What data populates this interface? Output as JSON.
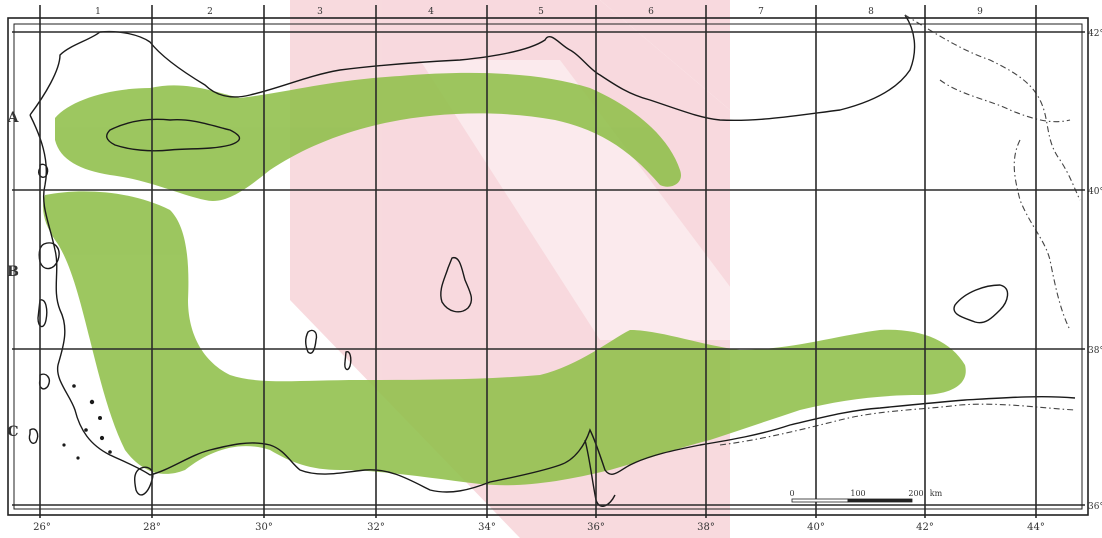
{
  "map": {
    "columns": [
      "1",
      "2",
      "3",
      "4",
      "5",
      "6",
      "7",
      "8",
      "9"
    ],
    "rows": [
      "A",
      "B",
      "C"
    ],
    "longitudes": [
      "26°",
      "28°",
      "30°",
      "32°",
      "34°",
      "36°",
      "38°",
      "40°",
      "42°",
      "44°"
    ],
    "latitudes": [
      "42°",
      "40°",
      "38°",
      "36°"
    ],
    "scale": {
      "zero": "0",
      "mid": "100",
      "end": "200",
      "unit": "km"
    },
    "colors": {
      "distribution": "#8fbf4a",
      "overlay_pink": "#f6cdd3",
      "coast": "#1a1a1a",
      "border": "#444444",
      "grid": "#2a2a2a",
      "frame": "#222222",
      "background": "#ffffff"
    }
  }
}
